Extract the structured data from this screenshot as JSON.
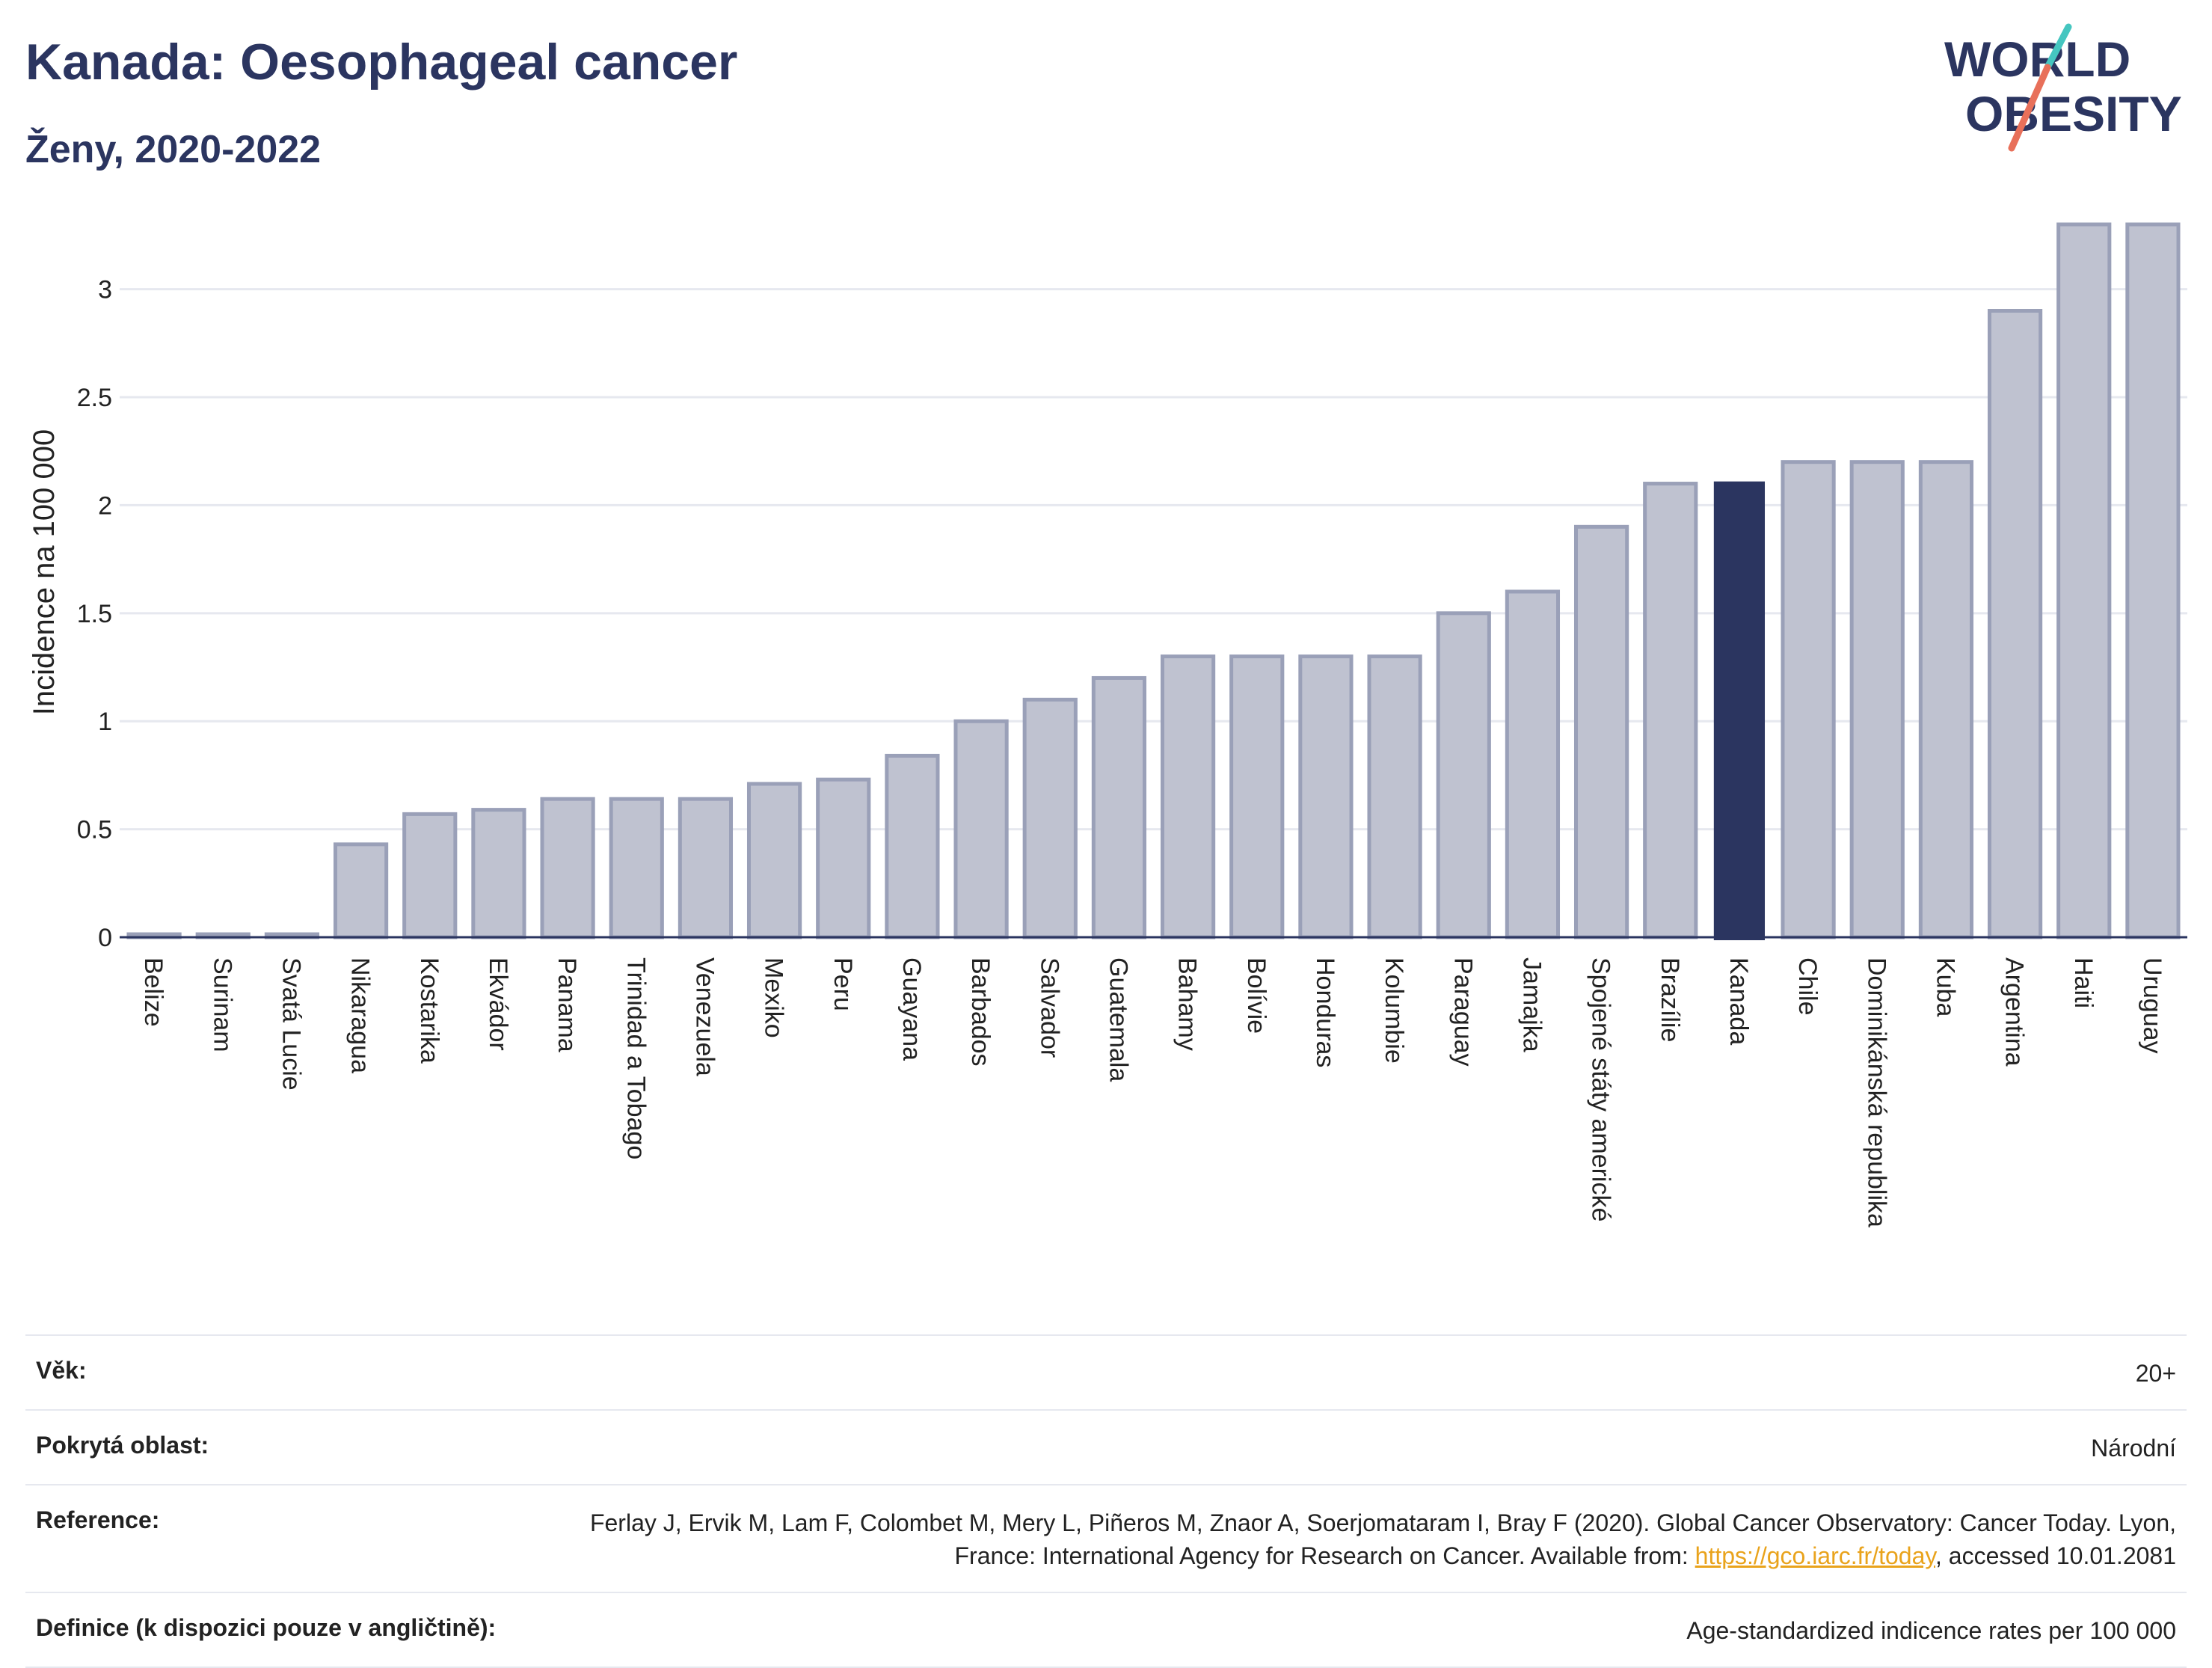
{
  "header": {
    "title": "Kanada: Oesophageal cancer",
    "subtitle": "Ženy, 2020-2022"
  },
  "logo": {
    "line1": "WORLD",
    "line2": "OBESITY",
    "accent_colors": [
      "#45c6c0",
      "#e8705a"
    ]
  },
  "colors": {
    "bar": "#bfc2d0",
    "bar_edge": "#9aa0b8",
    "highlight": "#2b3560",
    "grid": "#e6e8ef"
  },
  "chart_data": {
    "type": "bar",
    "title": "Kanada: Oesophageal cancer",
    "xlabel": "",
    "ylabel": "Incidence na 100 000",
    "ylim": [
      0,
      3.3
    ],
    "yticks": [
      0,
      0.5,
      1,
      1.5,
      2,
      2.5,
      3
    ],
    "ytick_labels": [
      "0",
      "0.5",
      "1",
      "1.5",
      "2",
      "2.5",
      "3"
    ],
    "grid": true,
    "highlight": "Kanada",
    "categories": [
      "Belize",
      "Surinam",
      "Svatá Lucie",
      "Nikaragua",
      "Kostarika",
      "Ekvádor",
      "Panama",
      "Trinidad a Tobago",
      "Venezuela",
      "Mexiko",
      "Peru",
      "Guayana",
      "Barbados",
      "Salvador",
      "Guatemala",
      "Bahamy",
      "Bolívie",
      "Honduras",
      "Kolumbie",
      "Paraguay",
      "Jamajka",
      "Spojené státy americké",
      "Brazílie",
      "Kanada",
      "Chile",
      "Dominikánská republika",
      "Kuba",
      "Argentina",
      "Haiti",
      "Uruguay"
    ],
    "values": [
      0.01,
      0.01,
      0.01,
      0.43,
      0.57,
      0.59,
      0.64,
      0.64,
      0.64,
      0.71,
      0.73,
      0.84,
      1.0,
      1.1,
      1.2,
      1.3,
      1.3,
      1.3,
      1.3,
      1.5,
      1.6,
      1.9,
      2.1,
      2.11,
      2.2,
      2.2,
      2.2,
      2.9,
      3.3,
      3.3
    ]
  },
  "meta": [
    {
      "key": "Věk:",
      "value": "20+"
    },
    {
      "key": "Pokrytá oblast:",
      "value": "Národní"
    },
    {
      "key": "Reference:",
      "value_before": "Ferlay J, Ervik M, Lam F, Colombet M, Mery L, Piñeros M, Znaor A, Soerjomataram I, Bray F (2020). Global Cancer Observatory: Cancer Today. Lyon, France: International Agency for Research on Cancer. Available from: ",
      "link": "https://gco.iarc.fr/today",
      "value_after": ", accessed 10.01.2081"
    },
    {
      "key": "Definice (k dispozici pouze v angličtině):",
      "value": "Age-standardized indicence rates per 100 000"
    }
  ]
}
